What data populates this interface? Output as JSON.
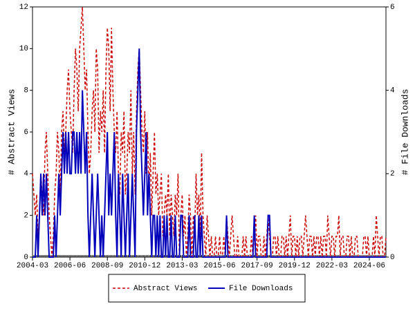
{
  "chart_data": {
    "type": "line",
    "y_label": "# Abstract Views",
    "y2_label": "# File Downloads",
    "legend": "bottom",
    "categories": [
      "2004-03",
      null,
      null,
      null,
      null,
      null,
      null,
      null,
      null,
      null,
      null,
      null,
      null,
      null,
      null,
      null,
      null,
      null,
      null,
      null,
      null,
      null,
      null,
      null,
      null,
      null,
      null,
      "2006-06",
      null,
      null,
      null,
      null,
      null,
      null,
      null,
      null,
      null,
      null,
      null,
      null,
      null,
      null,
      null,
      null,
      null,
      null,
      null,
      null,
      null,
      null,
      null,
      null,
      null,
      null,
      "2008-09",
      null,
      null,
      null,
      null,
      null,
      null,
      null,
      null,
      null,
      null,
      null,
      null,
      null,
      null,
      null,
      null,
      null,
      null,
      null,
      null,
      null,
      null,
      null,
      null,
      null,
      null,
      "2010-12",
      null,
      null,
      null,
      null,
      null,
      null,
      null,
      null,
      null,
      null,
      null,
      null,
      null,
      null,
      null,
      null,
      null,
      null,
      null,
      null,
      null,
      null,
      null,
      null,
      null,
      null,
      "2013-03",
      null,
      null,
      null,
      null,
      null,
      null,
      null,
      null,
      null,
      null,
      null,
      null,
      null,
      null,
      null,
      null,
      null,
      null,
      null,
      null,
      null,
      null,
      null,
      null,
      null,
      null,
      "2015-06",
      null,
      null,
      null,
      null,
      null,
      null,
      null,
      null,
      null,
      null,
      null,
      null,
      null,
      null,
      null,
      null,
      null,
      null,
      null,
      null,
      null,
      null,
      null,
      null,
      null,
      null,
      "2017-09",
      null,
      null,
      null,
      null,
      null,
      null,
      null,
      null,
      null,
      null,
      null,
      null,
      null,
      null,
      null,
      null,
      null,
      null,
      null,
      null,
      null,
      null,
      null,
      null,
      null,
      null,
      "2019-12",
      null,
      null,
      null,
      null,
      null,
      null,
      null,
      null,
      null,
      null,
      null,
      null,
      null,
      null,
      null,
      null,
      null,
      null,
      null,
      null,
      null,
      null,
      null,
      null,
      null,
      null,
      "2022-03",
      null,
      null,
      null,
      null,
      null,
      null,
      null,
      null,
      null,
      null,
      null,
      null,
      null,
      null,
      null,
      null,
      null,
      null,
      null,
      null,
      null,
      null,
      null,
      null,
      null,
      null,
      "2024-06",
      null,
      null,
      null,
      null,
      null,
      null,
      null,
      null,
      null,
      null,
      null,
      null
    ],
    "series": [
      {
        "name": "Abstract Views",
        "color": "#cc0000",
        "dash": true,
        "values": [
          4,
          3,
          2,
          3,
          1,
          2,
          4,
          3,
          2,
          5,
          6,
          4,
          2,
          1,
          0,
          1,
          3,
          4,
          6,
          5,
          3,
          6,
          7,
          5,
          6,
          8,
          9,
          7,
          6,
          5,
          8,
          10,
          9,
          7,
          10,
          11,
          12,
          10,
          8,
          9,
          6,
          4,
          5,
          7,
          8,
          6,
          10,
          9,
          5,
          7,
          6,
          8,
          5,
          9,
          11,
          10,
          7,
          11,
          8,
          6,
          5,
          7,
          4,
          3,
          6,
          5,
          7,
          3,
          4,
          6,
          5,
          8,
          4,
          6,
          3,
          7,
          9,
          10,
          8,
          6,
          5,
          7,
          4,
          6,
          3,
          5,
          2,
          4,
          6,
          3,
          4,
          2,
          3,
          4,
          1,
          2,
          3,
          2,
          4,
          1,
          3,
          2,
          1,
          3,
          2,
          4,
          0,
          2,
          3,
          1,
          2,
          0,
          1,
          3,
          2,
          0,
          2,
          1,
          4,
          2,
          3,
          1,
          5,
          2,
          1,
          0,
          2,
          1,
          0,
          1,
          0,
          0,
          1,
          0,
          0,
          1,
          0,
          0,
          1,
          0,
          2,
          1,
          0,
          1,
          2,
          1,
          0,
          0,
          1,
          0,
          0,
          0,
          1,
          0,
          1,
          0,
          0,
          0,
          1,
          0,
          1,
          2,
          0,
          1,
          1,
          0,
          0,
          1,
          0,
          1,
          2,
          1,
          0,
          0,
          1,
          1,
          0,
          1,
          0,
          0,
          1,
          1,
          0,
          1,
          0,
          1,
          2,
          0,
          1,
          1,
          0,
          1,
          0,
          1,
          1,
          0,
          1,
          2,
          1,
          0,
          1,
          1,
          0,
          1,
          0,
          1,
          1,
          0,
          1,
          0,
          1,
          1,
          0,
          2,
          1,
          0,
          1,
          1,
          0,
          1,
          1,
          2,
          0,
          1,
          1,
          0,
          0,
          1,
          1,
          0,
          1,
          0,
          0,
          1,
          1,
          0,
          0,
          0,
          0,
          1,
          1,
          0,
          1,
          0,
          0,
          0,
          1,
          0,
          2,
          1,
          0,
          1,
          1,
          0,
          0,
          1
        ]
      },
      {
        "name": "File Downloads",
        "color": "#0000bb",
        "dash": false,
        "axis": "y2",
        "values": [
          0,
          0,
          0,
          1,
          0,
          1,
          2,
          1,
          2,
          1,
          2,
          1,
          0,
          0,
          0,
          0,
          1,
          0,
          1,
          2,
          1,
          2,
          3,
          2,
          3,
          2,
          3,
          2,
          2,
          3,
          3,
          2,
          3,
          2,
          3,
          2,
          4,
          3,
          2,
          3,
          1,
          0,
          1,
          2,
          1,
          0,
          1,
          2,
          1,
          0,
          1,
          0,
          1,
          2,
          3,
          1,
          2,
          1,
          2,
          3,
          1,
          0,
          2,
          1,
          0,
          2,
          1,
          0,
          1,
          2,
          0,
          1,
          2,
          1,
          0,
          3,
          4,
          5,
          3,
          2,
          1,
          2,
          3,
          1,
          2,
          1,
          0,
          1,
          1,
          0,
          1,
          0,
          1,
          0,
          0,
          1,
          0,
          1,
          0,
          0,
          1,
          0,
          0,
          1,
          0,
          0,
          0,
          1,
          1,
          0,
          0,
          0,
          0,
          1,
          0,
          0,
          0,
          1,
          0,
          0,
          1,
          0,
          1,
          0,
          0,
          0,
          0,
          0,
          0,
          0,
          0,
          0,
          0,
          0,
          0,
          0,
          0,
          0,
          0,
          0,
          1,
          0,
          0,
          0,
          0,
          0,
          0,
          0,
          0,
          0,
          0,
          0,
          0,
          0,
          0,
          0,
          0,
          0,
          0,
          0,
          1,
          0,
          0,
          0,
          0,
          0,
          0,
          0,
          0,
          0,
          1,
          1,
          0,
          0,
          0,
          0,
          0,
          0,
          0,
          0,
          0,
          0,
          0,
          0,
          0,
          0,
          0,
          0,
          0,
          0,
          0,
          0,
          0,
          0,
          0,
          0,
          0,
          0,
          0,
          0,
          0,
          0,
          0,
          0,
          0,
          0,
          0,
          0,
          0,
          0,
          0,
          0,
          0,
          0,
          0,
          0,
          0,
          0,
          0,
          0,
          0,
          0,
          0,
          0,
          0,
          0,
          0,
          0,
          0,
          0,
          0,
          0,
          0,
          0,
          0,
          0,
          0,
          0,
          0,
          0,
          0,
          0,
          0,
          0,
          0,
          0,
          0,
          0,
          0,
          0,
          0,
          0,
          0,
          0,
          0,
          0
        ]
      }
    ],
    "ylim": [
      0,
      12
    ],
    "yticks": [
      0,
      2,
      4,
      6,
      8,
      10,
      12
    ],
    "y2lim": [
      0,
      6
    ],
    "y2ticks": [
      0,
      2,
      4,
      6
    ]
  }
}
